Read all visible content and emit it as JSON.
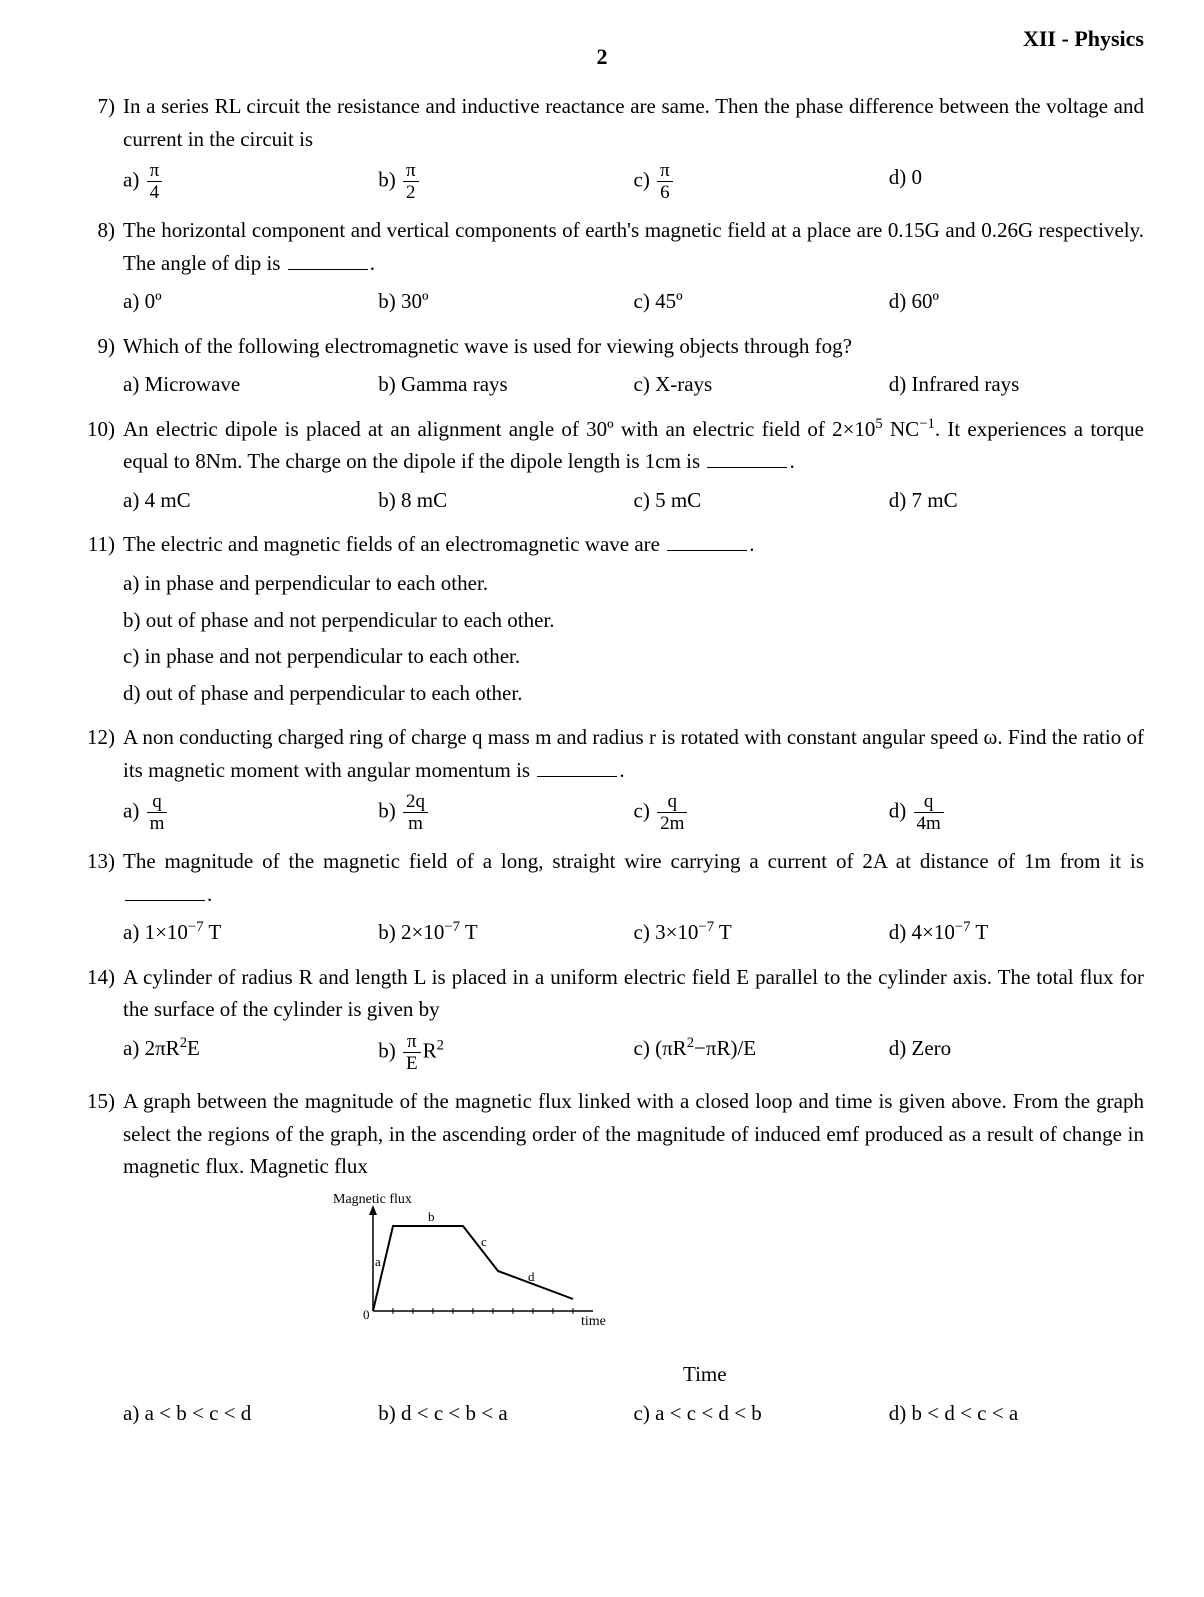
{
  "header": {
    "page": "2",
    "subject": "XII - Physics"
  },
  "questions": [
    {
      "num": "7)",
      "stem": "In a series RL circuit the resistance and inductive reactance are same. Then the phase difference between the voltage and current in the circuit is",
      "opts": [
        {
          "l": "a)",
          "frac": [
            "π",
            "4"
          ]
        },
        {
          "l": "b)",
          "frac": [
            "π",
            "2"
          ]
        },
        {
          "l": "c)",
          "frac": [
            "π",
            "6"
          ]
        },
        {
          "l": "d)",
          "t": "0"
        }
      ]
    },
    {
      "num": "8)",
      "stem_parts": [
        "The horizontal component and vertical components of earth's magnetic field at a place are 0.15G and 0.26G respectively. The angle of dip is ",
        "BLANK",
        "."
      ],
      "opts": [
        {
          "l": "a)",
          "t": "0º"
        },
        {
          "l": "b)",
          "t": "30º"
        },
        {
          "l": "c)",
          "t": "45º"
        },
        {
          "l": "d)",
          "t": "60º"
        }
      ]
    },
    {
      "num": "9)",
      "stem": "Which of the following electromagnetic wave is used for viewing objects through fog?",
      "opts": [
        {
          "l": "a)",
          "t": "Microwave"
        },
        {
          "l": "b)",
          "t": "Gamma rays"
        },
        {
          "l": "c)",
          "t": "X-rays"
        },
        {
          "l": "d)",
          "t": "Infrared rays"
        }
      ]
    },
    {
      "num": "10)",
      "stem_html": "An electric dipole is placed at an alignment angle of 30º with an electric field of 2×10<sup>5</sup> NC<sup>−1</sup>. It experiences a torque equal to 8Nm. The charge on the dipole if the dipole length is 1cm is <span class='blank'></span>.",
      "opts": [
        {
          "l": "a)",
          "t": "4 mC"
        },
        {
          "l": "b)",
          "t": "8 mC"
        },
        {
          "l": "c)",
          "t": "5 mC"
        },
        {
          "l": "d)",
          "t": "7 mC"
        }
      ]
    },
    {
      "num": "11)",
      "stem_parts": [
        "The electric and magnetic fields of an electromagnetic wave are ",
        "BLANK",
        "."
      ],
      "opts_full": [
        {
          "l": "a)",
          "t": "in phase and perpendicular to each other."
        },
        {
          "l": "b)",
          "t": "out of phase and not perpendicular to each other."
        },
        {
          "l": "c)",
          "t": "in phase and not perpendicular to each other."
        },
        {
          "l": "d)",
          "t": "out of phase and perpendicular to each other."
        }
      ]
    },
    {
      "num": "12)",
      "stem_parts": [
        "A non conducting charged ring of charge q mass m and radius r is rotated with constant angular speed ω. Find the ratio of its magnetic moment with angular momentum is ",
        "BLANK",
        "."
      ],
      "opts": [
        {
          "l": "a)",
          "frac": [
            "q",
            "m"
          ]
        },
        {
          "l": "b)",
          "frac": [
            "2q",
            "m"
          ]
        },
        {
          "l": "c)",
          "frac": [
            "q",
            "2m"
          ]
        },
        {
          "l": "d)",
          "frac": [
            "q",
            "4m"
          ]
        }
      ]
    },
    {
      "num": "13)",
      "stem_parts": [
        "The magnitude of the magnetic field of a long, straight wire carrying a current of 2A at distance of 1m from it is ",
        "BLANK",
        "."
      ],
      "opts": [
        {
          "l": "a)",
          "html": "1×10<sup>−7</sup> T"
        },
        {
          "l": "b)",
          "html": "2×10<sup>−7</sup> T"
        },
        {
          "l": "c)",
          "html": "3×10<sup>−7</sup> T"
        },
        {
          "l": "d)",
          "html": "4×10<sup>−7</sup> T"
        }
      ]
    },
    {
      "num": "14)",
      "stem": "A cylinder of radius R and length L is placed in a uniform electric field E parallel to the cylinder axis. The total flux for the surface of the cylinder is given by",
      "opts": [
        {
          "l": "a)",
          "html": "2πR<sup>2</sup>E"
        },
        {
          "l": "b)",
          "frac_then": [
            "π",
            "E"
          ],
          "after": "R<sup>2</sup>"
        },
        {
          "l": "c)",
          "html": "(πR<sup>2</sup>−πR)/E"
        },
        {
          "l": "d)",
          "t": "Zero"
        }
      ]
    },
    {
      "num": "15)",
      "stem": "A graph between the magnitude of the magnetic flux linked with a closed loop and time is given above. From the graph select the regions of the graph, in the ascending order of the magnitude of induced emf produced as a result of change in magnetic flux.    Magnetic flux",
      "graph": {
        "ylabel": "Magnetic flux",
        "xlabel": "time",
        "segments": [
          "a",
          "b",
          "c",
          "d"
        ],
        "stroke": "#000000",
        "bg": "#ffffff"
      },
      "time_label": "Time",
      "opts": [
        {
          "l": "a)",
          "t": "a < b < c < d"
        },
        {
          "l": "b)",
          "t": "d < c < b < a"
        },
        {
          "l": "c)",
          "t": "a < c < d < b"
        },
        {
          "l": "d)",
          "t": "b < d < c < a"
        }
      ]
    }
  ]
}
